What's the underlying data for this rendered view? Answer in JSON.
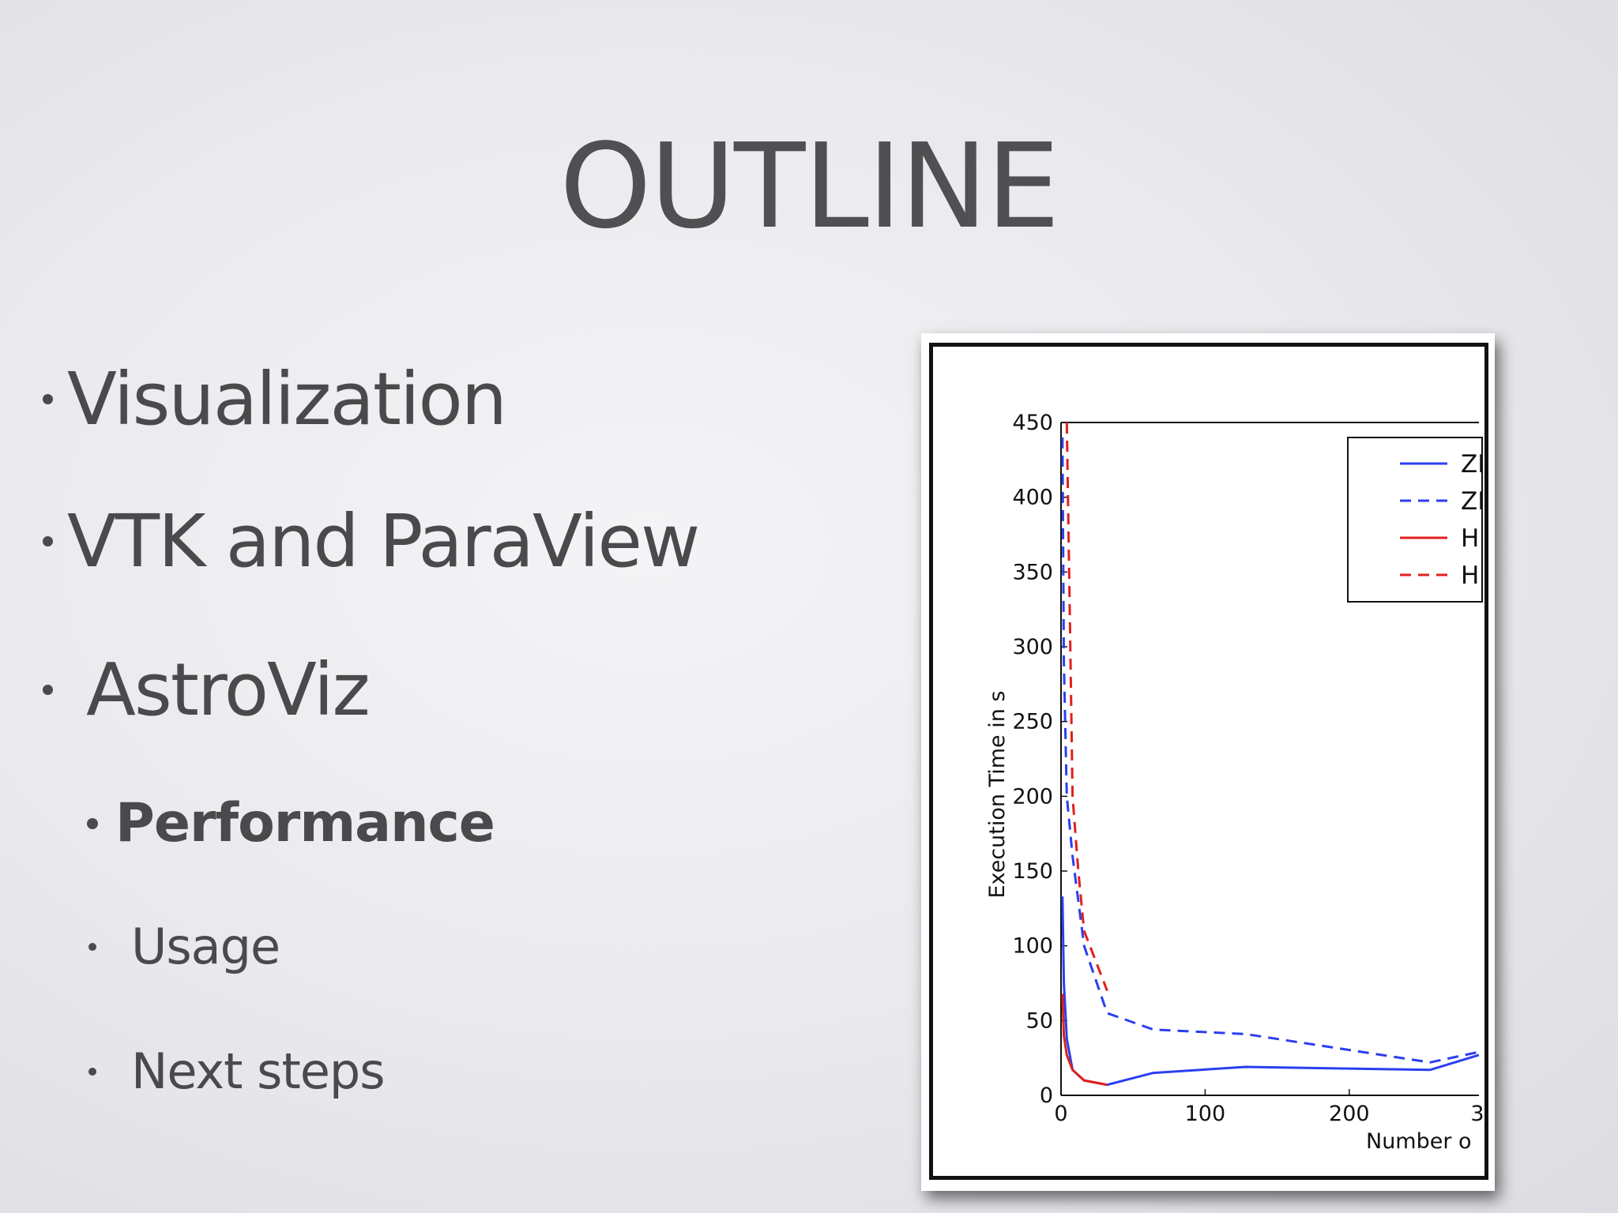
{
  "slide": {
    "title": "OUTLINE",
    "bullets": [
      {
        "text": "Visualization"
      },
      {
        "text": "VTK and ParaView"
      },
      {
        "text": "AstroViz"
      },
      {
        "text": "Performance"
      },
      {
        "text": "Usage"
      },
      {
        "text": "Next steps"
      }
    ]
  },
  "chart_data": {
    "type": "line",
    "ylabel": "Execution Time in s",
    "xlabel": "Number o",
    "ylim": [
      0,
      450
    ],
    "xlim": [
      0,
      290
    ],
    "xticks": [
      "0",
      "100",
      "200",
      "3"
    ],
    "yticks": [
      "0",
      "50",
      "100",
      "150",
      "200",
      "250",
      "300",
      "350",
      "400",
      "450"
    ],
    "legend_placement": "top-right",
    "legend_labels": [
      "ZI",
      "ZI",
      "H",
      "H"
    ],
    "series": [
      {
        "color": "#2b3ff0",
        "dash": false,
        "x": [
          1,
          2,
          4,
          8,
          16,
          32,
          64,
          128,
          256,
          290
        ],
        "y": [
          133,
          75,
          38,
          17,
          10,
          7,
          15,
          19,
          17,
          27
        ]
      },
      {
        "color": "#2b3ff0",
        "dash": true,
        "x": [
          1,
          2,
          4,
          8,
          16,
          32,
          64,
          128,
          256,
          290
        ],
        "y": [
          440,
          290,
          200,
          160,
          100,
          55,
          44,
          41,
          22,
          29
        ]
      },
      {
        "color": "#e0201c",
        "dash": false,
        "x": [
          1,
          2,
          4,
          8,
          16,
          32
        ],
        "y": [
          68,
          40,
          27,
          17,
          10,
          7
        ]
      },
      {
        "color": "#e0201c",
        "dash": true,
        "x": [
          4,
          6,
          8,
          12,
          16,
          24,
          32
        ],
        "y": [
          450,
          330,
          200,
          150,
          110,
          90,
          70
        ]
      }
    ]
  }
}
